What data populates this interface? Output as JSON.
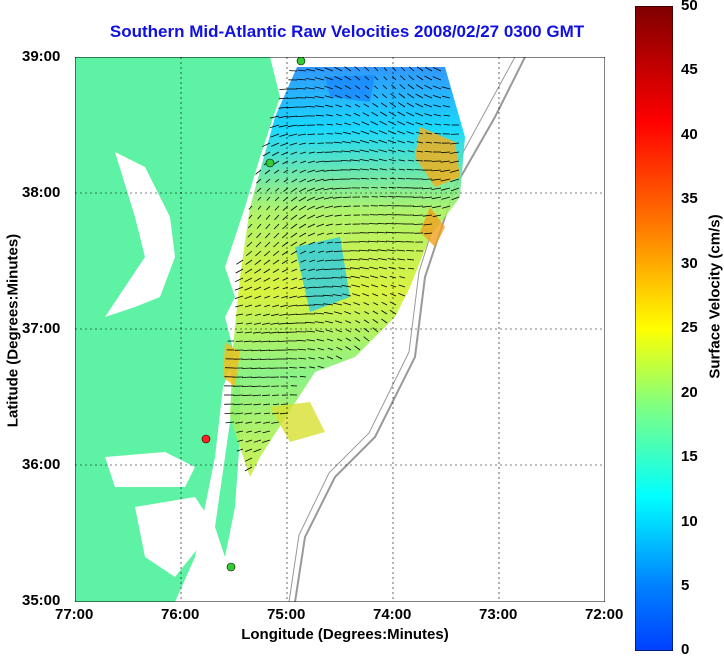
{
  "title": "Southern Mid-Atlantic Raw Velocities 2008/02/27 0300 GMT",
  "map": {
    "xlabel": "Longitude (Degrees:Minutes)",
    "ylabel": "Latitude (Degrees:Minutes)",
    "x_ticks": [
      "77:00",
      "76:00",
      "75:00",
      "74:00",
      "73:00",
      "72:00"
    ],
    "y_ticks": [
      "39:00",
      "38:00",
      "37:00",
      "36:00",
      "35:00"
    ],
    "lon_range": [
      -77,
      -72
    ],
    "lat_range": [
      35,
      39
    ],
    "land_color": "#5ef2a4",
    "vector_color": "#000000"
  },
  "colorbar": {
    "label": "Surface Velocity (cm/s)",
    "ticks": [
      "50",
      "45",
      "40",
      "35",
      "30",
      "25",
      "20",
      "15",
      "10",
      "5",
      "0"
    ],
    "range": [
      0,
      50
    ],
    "colors": [
      "#7f0000",
      "#ff0000",
      "#ff8000",
      "#ffff00",
      "#80ff80",
      "#00ffff",
      "#0080ff",
      "#0000ff"
    ]
  },
  "stations": [
    {
      "color": "#33cc33"
    },
    {
      "color": "#33cc33"
    },
    {
      "color": "#ff2020"
    },
    {
      "color": "#33cc33"
    }
  ]
}
